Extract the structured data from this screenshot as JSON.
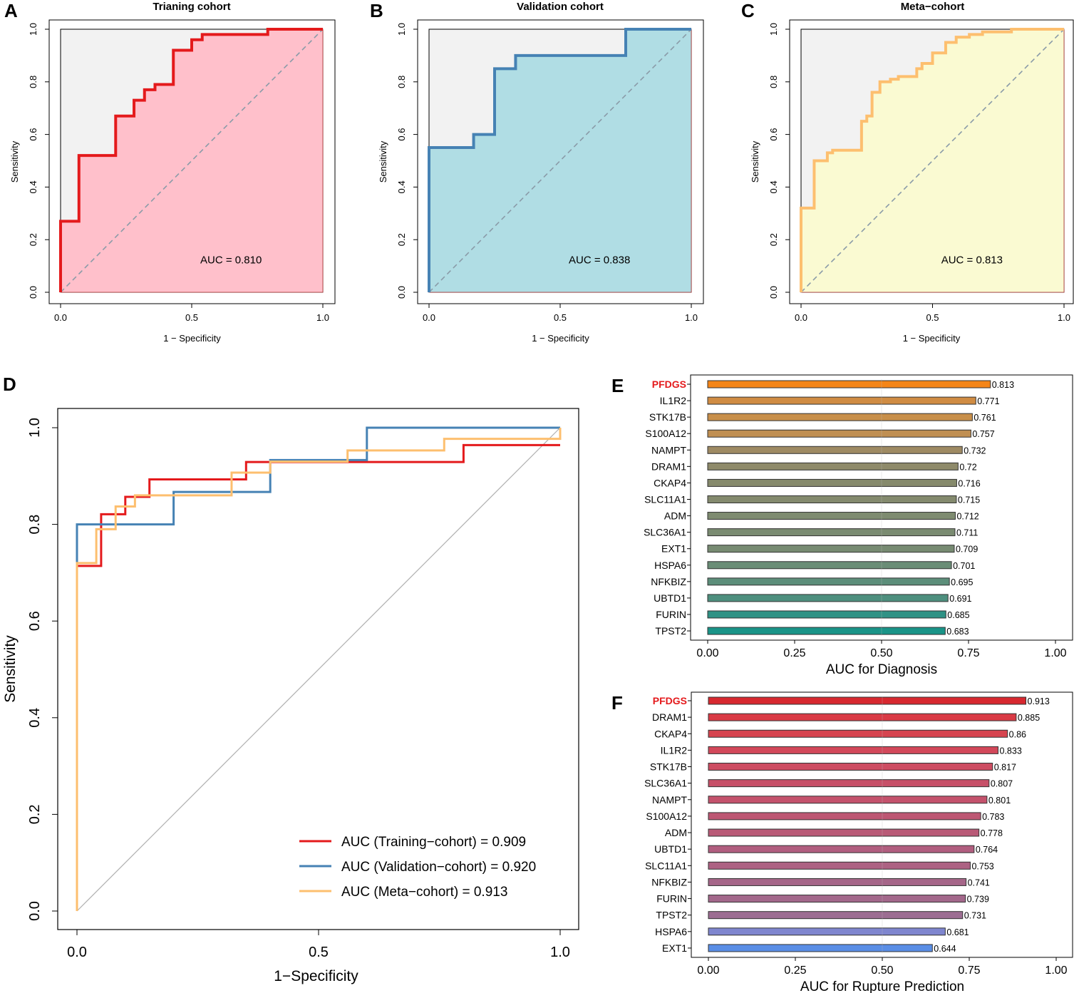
{
  "chart_data": [
    {
      "panel": "A",
      "type": "line",
      "title": "Trianing cohort",
      "xlabel": "1 − Specificity",
      "ylabel": "Sensitivity",
      "xlim": [
        0,
        1
      ],
      "ylim": [
        0,
        1
      ],
      "x_ticks": [
        "0.0",
        "0.5",
        "1.0"
      ],
      "y_ticks": [
        "0.0",
        "0.2",
        "0.4",
        "0.6",
        "0.8",
        "1.0"
      ],
      "color": "#e41a1c",
      "fill": "#ffc0cb",
      "auc_label": "AUC = 0.810",
      "x": [
        0,
        0,
        0.07,
        0.07,
        0.21,
        0.21,
        0.28,
        0.28,
        0.32,
        0.32,
        0.36,
        0.36,
        0.43,
        0.43,
        0.5,
        0.5,
        0.54,
        0.54,
        0.79,
        0.79,
        1
      ],
      "y": [
        0,
        0.27,
        0.27,
        0.52,
        0.52,
        0.67,
        0.67,
        0.73,
        0.73,
        0.77,
        0.77,
        0.79,
        0.79,
        0.92,
        0.92,
        0.96,
        0.96,
        0.98,
        0.98,
        1,
        1
      ]
    },
    {
      "panel": "B",
      "type": "line",
      "title": "Validation cohort",
      "xlabel": "1 − Specificity",
      "ylabel": "Sensitivity",
      "xlim": [
        0,
        1
      ],
      "ylim": [
        0,
        1
      ],
      "x_ticks": [
        "0.0",
        "0.5",
        "1.0"
      ],
      "y_ticks": [
        "0.0",
        "0.2",
        "0.4",
        "0.6",
        "0.8",
        "1.0"
      ],
      "color": "#4682b4",
      "fill": "#b0dde4",
      "auc_label": "AUC = 0.838",
      "x": [
        0,
        0,
        0.17,
        0.17,
        0.25,
        0.25,
        0.33,
        0.33,
        0.75,
        0.75,
        1
      ],
      "y": [
        0,
        0.55,
        0.55,
        0.6,
        0.6,
        0.85,
        0.85,
        0.9,
        0.9,
        1,
        1
      ]
    },
    {
      "panel": "C",
      "type": "line",
      "title": "Meta−cohort",
      "xlabel": "1 − Specificity",
      "ylabel": "Sensitivity",
      "xlim": [
        0,
        1
      ],
      "ylim": [
        0,
        1
      ],
      "x_ticks": [
        "0.0",
        "0.5",
        "1.0"
      ],
      "y_ticks": [
        "0.0",
        "0.2",
        "0.4",
        "0.6",
        "0.8",
        "1.0"
      ],
      "color": "#fdbf6f",
      "fill": "#fafad2",
      "auc_label": "AUC = 0.813",
      "x": [
        0,
        0,
        0.05,
        0.05,
        0.1,
        0.1,
        0.12,
        0.12,
        0.23,
        0.23,
        0.25,
        0.25,
        0.27,
        0.27,
        0.3,
        0.3,
        0.34,
        0.34,
        0.37,
        0.37,
        0.44,
        0.44,
        0.46,
        0.46,
        0.5,
        0.5,
        0.55,
        0.55,
        0.59,
        0.59,
        0.64,
        0.64,
        0.69,
        0.69,
        0.8,
        0.8,
        1
      ],
      "y": [
        0,
        0.32,
        0.32,
        0.5,
        0.5,
        0.53,
        0.53,
        0.54,
        0.54,
        0.65,
        0.65,
        0.67,
        0.67,
        0.76,
        0.76,
        0.8,
        0.8,
        0.81,
        0.81,
        0.82,
        0.82,
        0.85,
        0.85,
        0.87,
        0.87,
        0.91,
        0.91,
        0.95,
        0.95,
        0.97,
        0.97,
        0.98,
        0.98,
        0.99,
        0.99,
        1,
        1
      ]
    },
    {
      "panel": "D",
      "type": "line",
      "title": "",
      "xlabel": "1−Specificity",
      "ylabel": "Sensitivity",
      "xlim": [
        0,
        1
      ],
      "ylim": [
        0,
        1
      ],
      "x_ticks": [
        "0.0",
        "0.5",
        "1.0"
      ],
      "y_ticks": [
        "0.0",
        "0.2",
        "0.4",
        "0.6",
        "0.8",
        "1.0"
      ],
      "legend_position": "bottom-right",
      "series": [
        {
          "name": "AUC (Training−cohort) = 0.909",
          "color": "#e41a1c",
          "x": [
            0,
            0,
            0.05,
            0.05,
            0.1,
            0.1,
            0.15,
            0.15,
            0.35,
            0.35,
            0.8,
            0.8,
            1
          ],
          "y": [
            0,
            0.714,
            0.714,
            0.821,
            0.821,
            0.857,
            0.857,
            0.893,
            0.893,
            0.929,
            0.929,
            0.964,
            0.964
          ]
        },
        {
          "name": "AUC (Validation−cohort) = 0.920",
          "color": "#4682b4",
          "x": [
            0,
            0,
            0.2,
            0.2,
            0.4,
            0.4,
            0.6,
            0.6,
            1
          ],
          "y": [
            0,
            0.8,
            0.8,
            0.867,
            0.867,
            0.933,
            0.933,
            1,
            1
          ]
        },
        {
          "name": "AUC (Meta−cohort) = 0.913",
          "color": "#fdbf6f",
          "x": [
            0,
            0,
            0.04,
            0.04,
            0.08,
            0.08,
            0.12,
            0.12,
            0.32,
            0.32,
            0.4,
            0.4,
            0.56,
            0.56,
            0.76,
            0.76,
            1,
            1
          ],
          "y": [
            0,
            0.72,
            0.72,
            0.79,
            0.79,
            0.837,
            0.837,
            0.86,
            0.86,
            0.907,
            0.907,
            0.93,
            0.93,
            0.953,
            0.953,
            0.977,
            0.977,
            1
          ]
        }
      ]
    },
    {
      "panel": "E",
      "type": "bar",
      "orientation": "horizontal",
      "xlabel": "AUC for Diagnosis",
      "xlim": [
        0,
        1
      ],
      "x_ticks": [
        "0.00",
        "0.25",
        "0.50",
        "0.75",
        "1.00"
      ],
      "highlight_category": "PFDGS",
      "categories": [
        "PFDGS",
        "IL1R2",
        "STK17B",
        "S100A12",
        "NAMPT",
        "DRAM1",
        "CKAP4",
        "SLC11A1",
        "ADM",
        "SLC36A1",
        "EXT1",
        "HSPA6",
        "NFKBIZ",
        "UBTD1",
        "FURIN",
        "TPST2"
      ],
      "values": [
        0.813,
        0.771,
        0.761,
        0.757,
        0.732,
        0.72,
        0.716,
        0.715,
        0.712,
        0.711,
        0.709,
        0.701,
        0.695,
        0.691,
        0.685,
        0.683
      ],
      "value_labels": [
        "0.813",
        "0.771",
        "0.761",
        "0.757",
        "0.732",
        "0.72",
        "0.716",
        "0.715",
        "0.712",
        "0.711",
        "0.709",
        "0.701",
        "0.695",
        "0.691",
        "0.685",
        "0.683"
      ],
      "colors": [
        "#f58518",
        "#d08c43",
        "#c88f4a",
        "#c08f52",
        "#9e8a63",
        "#8e8a6a",
        "#868a6c",
        "#848a6e",
        "#7e8b70",
        "#7a8b71",
        "#778b72",
        "#6a8d76",
        "#5c8e7a",
        "#4e8f7e",
        "#2f9285",
        "#1a9488"
      ]
    },
    {
      "panel": "F",
      "type": "bar",
      "orientation": "horizontal",
      "xlabel": "AUC for Rupture Prediction",
      "xlim": [
        0,
        1
      ],
      "x_ticks": [
        "0.00",
        "0.25",
        "0.50",
        "0.75",
        "1.00"
      ],
      "highlight_category": "PFDGS",
      "categories": [
        "PFDGS",
        "DRAM1",
        "CKAP4",
        "IL1R2",
        "STK17B",
        "SLC36A1",
        "NAMPT",
        "S100A12",
        "ADM",
        "UBTD1",
        "SLC11A1",
        "NFKBIZ",
        "FURIN",
        "TPST2",
        "HSPA6",
        "EXT1"
      ],
      "values": [
        0.913,
        0.885,
        0.86,
        0.833,
        0.817,
        0.807,
        0.801,
        0.783,
        0.778,
        0.764,
        0.753,
        0.741,
        0.739,
        0.731,
        0.681,
        0.644
      ],
      "value_labels": [
        "0.913",
        "0.885",
        "0.86",
        "0.833",
        "0.817",
        "0.807",
        "0.801",
        "0.783",
        "0.778",
        "0.764",
        "0.753",
        "0.741",
        "0.739",
        "0.731",
        "0.681",
        "0.644"
      ],
      "colors": [
        "#d7282f",
        "#d93a45",
        "#d6444f",
        "#d2485a",
        "#cd4d62",
        "#c75068",
        "#c4526c",
        "#bd5773",
        "#b95a77",
        "#b15e7f",
        "#ad6283",
        "#a66689",
        "#a3688b",
        "#9c6d92",
        "#7f86cf",
        "#5a8ee6"
      ]
    }
  ],
  "panel_letters": {
    "A": "A",
    "B": "B",
    "C": "C",
    "D": "D",
    "E": "E",
    "F": "F"
  },
  "colors": {
    "panel_background": "#f2f2f2",
    "diagonal": "#8a9ba8",
    "highlight_label": "#e41a1c"
  }
}
